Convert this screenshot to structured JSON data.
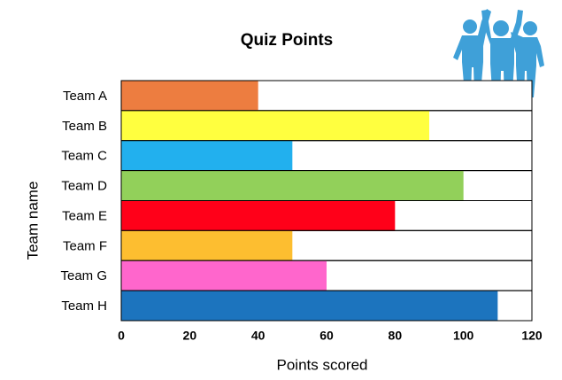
{
  "chart_data": {
    "type": "barh",
    "title": "Quiz Points",
    "xlabel": "Points  scored",
    "ylabel": "Team name",
    "categories": [
      "Team A",
      "Team B",
      "Team C",
      "Team D",
      "Team E",
      "Team F",
      "Team G",
      "Team H"
    ],
    "values": [
      40,
      90,
      50,
      100,
      80,
      50,
      60,
      110
    ],
    "colors": [
      "#ED7D40",
      "#FFFF3F",
      "#22B0EE",
      "#92D05A",
      "#FF0019",
      "#FDBE30",
      "#FF66CC",
      "#1C74BE"
    ],
    "xlim": [
      0,
      120
    ],
    "xticks": [
      0,
      20,
      40,
      60,
      80,
      100,
      120
    ]
  }
}
